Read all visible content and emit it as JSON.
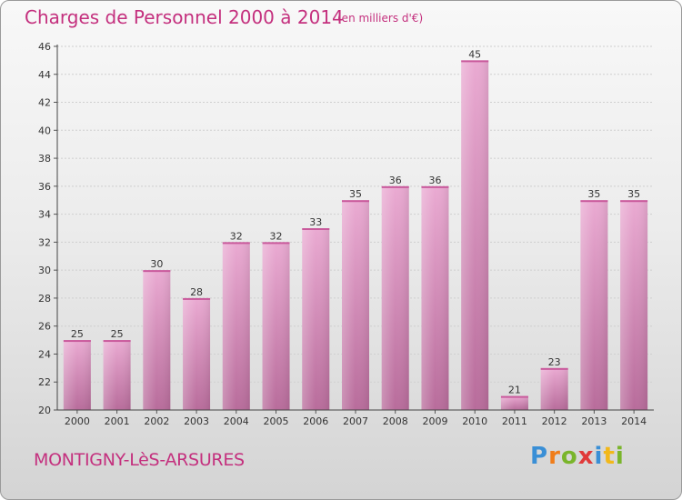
{
  "header": {
    "title": "Charges de Personnel 2000 à 2014",
    "subtitle": "(en milliers d'€)"
  },
  "footer": {
    "commune": "MONTIGNY-LèS-ARSURES",
    "logo": [
      "P",
      "r",
      "o",
      "x",
      "i",
      "t",
      "i"
    ],
    "logo_colors": [
      "#3a8fd6",
      "#f07d1a",
      "#7ab52b",
      "#e03a3a",
      "#3a8fd6",
      "#f2b81a",
      "#7ab52b"
    ]
  },
  "chart_data": {
    "type": "bar",
    "categories": [
      "2000",
      "2001",
      "2002",
      "2003",
      "2004",
      "2005",
      "2006",
      "2007",
      "2008",
      "2009",
      "2010",
      "2011",
      "2012",
      "2013",
      "2014"
    ],
    "values": [
      25,
      25,
      30,
      28,
      32,
      32,
      33,
      35,
      36,
      36,
      45,
      21,
      23,
      35,
      35
    ],
    "title": "Charges de Personnel 2000 à 2014",
    "subtitle": "(en milliers d'€)",
    "xlabel": "",
    "ylabel": "",
    "ylim": [
      20,
      46
    ],
    "yticks": [
      20,
      22,
      24,
      26,
      28,
      30,
      32,
      34,
      36,
      38,
      40,
      42,
      44,
      46
    ],
    "grid": true,
    "bar_color_top": "#eaaad2",
    "bar_color_bottom": "#b86c9b"
  }
}
